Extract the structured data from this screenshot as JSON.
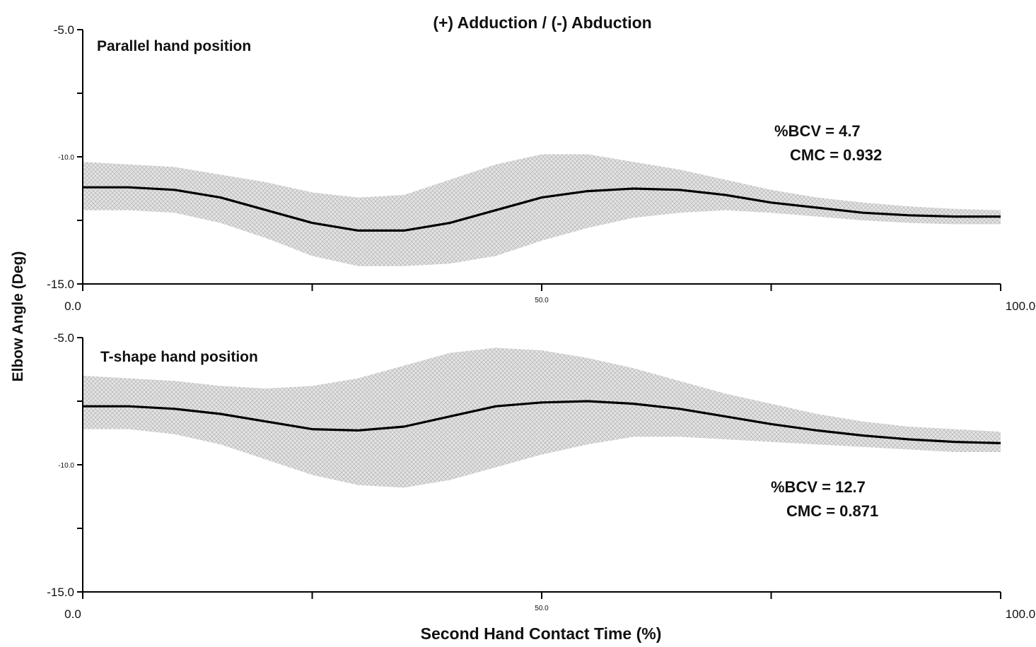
{
  "title": "(+) Adduction / (-) Abduction",
  "ylabel": "Elbow Angle (Deg)",
  "xlabel": "Second Hand Contact Time (%)",
  "chart_data": [
    {
      "type": "line",
      "panel_label": "Parallel hand position",
      "stats": [
        "%BCV = 4.7",
        "CMC = 0.932"
      ],
      "ylim": [
        -15.0,
        -5.0
      ],
      "yticks": [
        {
          "value": -5.0,
          "label": "-5.0"
        },
        {
          "value": -7.5,
          "label": ""
        },
        {
          "value": -10.0,
          "label": "-10.0"
        },
        {
          "value": -12.5,
          "label": ""
        },
        {
          "value": -15.0,
          "label": "-15.0"
        }
      ],
      "xlim": [
        0,
        100
      ],
      "xticks": [
        {
          "value": 0,
          "label": "0.0"
        },
        {
          "value": 25,
          "label": ""
        },
        {
          "value": 50,
          "label": "50.0"
        },
        {
          "value": 75,
          "label": ""
        },
        {
          "value": 100,
          "label": "100.0"
        }
      ],
      "band": "mean ± SD (shaded)",
      "x": [
        0,
        5,
        10,
        15,
        20,
        25,
        30,
        35,
        40,
        45,
        50,
        55,
        60,
        65,
        70,
        75,
        80,
        85,
        90,
        95,
        100
      ],
      "mean": [
        -11.2,
        -11.2,
        -11.3,
        -11.6,
        -12.1,
        -12.6,
        -12.9,
        -12.9,
        -12.6,
        -12.1,
        -11.6,
        -11.35,
        -11.25,
        -11.3,
        -11.5,
        -11.8,
        -12.0,
        -12.2,
        -12.3,
        -12.35,
        -12.35
      ],
      "upper": [
        -10.2,
        -10.3,
        -10.4,
        -10.7,
        -11.0,
        -11.4,
        -11.6,
        -11.5,
        -10.9,
        -10.3,
        -9.9,
        -9.9,
        -10.2,
        -10.5,
        -10.9,
        -11.3,
        -11.6,
        -11.8,
        -11.95,
        -12.05,
        -12.1
      ],
      "lower": [
        -12.1,
        -12.1,
        -12.2,
        -12.6,
        -13.2,
        -13.9,
        -14.3,
        -14.3,
        -14.2,
        -13.9,
        -13.3,
        -12.8,
        -12.4,
        -12.2,
        -12.1,
        -12.2,
        -12.35,
        -12.5,
        -12.6,
        -12.65,
        -12.65
      ]
    },
    {
      "type": "line",
      "panel_label": "T-shape hand position",
      "stats": [
        "%BCV = 12.7",
        "CMC = 0.871"
      ],
      "ylim": [
        -15.0,
        -5.0
      ],
      "yticks": [
        {
          "value": -5.0,
          "label": "-5.0"
        },
        {
          "value": -7.5,
          "label": ""
        },
        {
          "value": -10.0,
          "label": "-10.0"
        },
        {
          "value": -12.5,
          "label": ""
        },
        {
          "value": -15.0,
          "label": "-15.0"
        }
      ],
      "xlim": [
        0,
        100
      ],
      "xticks": [
        {
          "value": 0,
          "label": "0.0"
        },
        {
          "value": 25,
          "label": ""
        },
        {
          "value": 50,
          "label": "50.0"
        },
        {
          "value": 75,
          "label": ""
        },
        {
          "value": 100,
          "label": "100.0"
        }
      ],
      "band": "mean ± SD (shaded)",
      "x": [
        0,
        5,
        10,
        15,
        20,
        25,
        30,
        35,
        40,
        45,
        50,
        55,
        60,
        65,
        70,
        75,
        80,
        85,
        90,
        95,
        100
      ],
      "mean": [
        -7.7,
        -7.7,
        -7.8,
        -8.0,
        -8.3,
        -8.6,
        -8.65,
        -8.5,
        -8.1,
        -7.7,
        -7.55,
        -7.5,
        -7.6,
        -7.8,
        -8.1,
        -8.4,
        -8.65,
        -8.85,
        -9.0,
        -9.1,
        -9.15
      ],
      "upper": [
        -6.5,
        -6.6,
        -6.7,
        -6.9,
        -7.0,
        -6.9,
        -6.6,
        -6.1,
        -5.6,
        -5.4,
        -5.5,
        -5.8,
        -6.2,
        -6.7,
        -7.2,
        -7.6,
        -8.0,
        -8.3,
        -8.5,
        -8.6,
        -8.7
      ],
      "lower": [
        -8.6,
        -8.6,
        -8.8,
        -9.2,
        -9.8,
        -10.4,
        -10.8,
        -10.9,
        -10.6,
        -10.1,
        -9.6,
        -9.2,
        -8.9,
        -8.9,
        -9.0,
        -9.1,
        -9.2,
        -9.3,
        -9.4,
        -9.5,
        -9.5
      ]
    }
  ]
}
